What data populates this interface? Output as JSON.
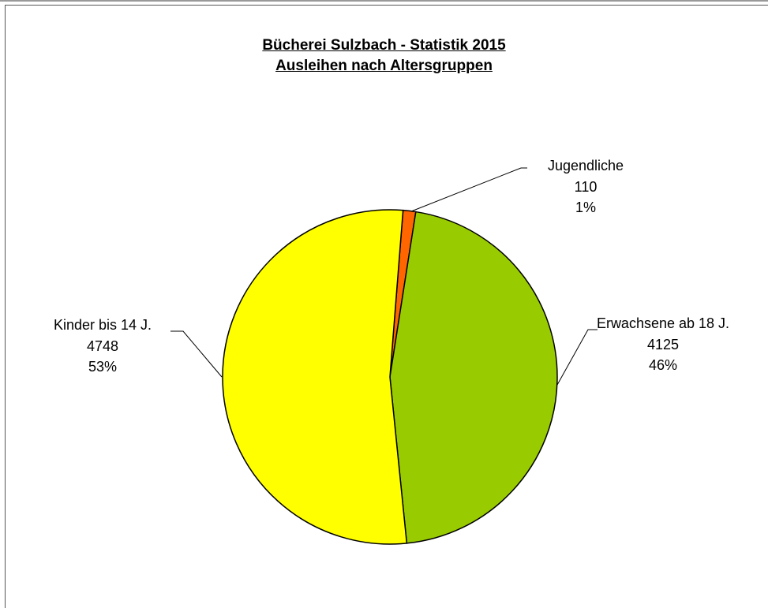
{
  "chart_data": {
    "type": "pie",
    "title": "Bücherei Sulzbach - Statistik 2015",
    "subtitle": "Ausleihen nach Altersgruppen",
    "categories": [
      "Jugendliche",
      "Erwachsene ab 18 J.",
      "Kinder bis 14 J."
    ],
    "values": [
      110,
      4125,
      4748
    ],
    "percent_labels": [
      "1%",
      "46%",
      "53%"
    ],
    "colors": [
      "#ff6600",
      "#99cc00",
      "#ffff00"
    ]
  }
}
